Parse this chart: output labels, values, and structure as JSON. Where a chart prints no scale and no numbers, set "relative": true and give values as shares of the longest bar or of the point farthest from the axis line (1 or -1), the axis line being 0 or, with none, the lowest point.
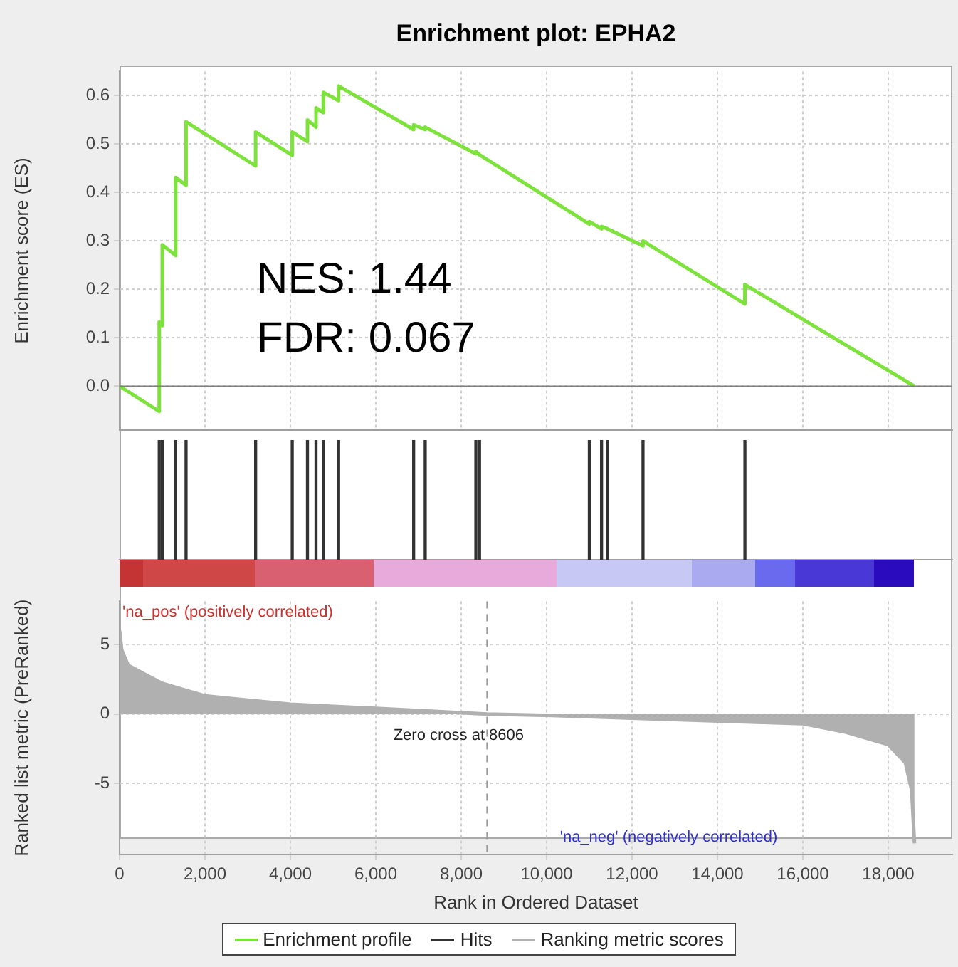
{
  "chart_data": [
    {
      "type": "line",
      "title": "Enrichment plot: EPHA2",
      "ylabel": "Enrichment score (ES)",
      "x": [
        0,
        929,
        929,
        1000,
        1000,
        1314,
        1314,
        1557,
        1557,
        3186,
        3186,
        4043,
        4043,
        4400,
        4400,
        4600,
        4600,
        4771,
        4771,
        5129,
        5129,
        6886,
        6886,
        7157,
        7157,
        8343,
        8343,
        8429,
        11000,
        11000,
        11286,
        11286,
        11429,
        12257,
        12257,
        14643,
        14643,
        18614
      ],
      "series": [
        {
          "name": "Enrichment profile",
          "color": "#7ee23c",
          "values": [
            0,
            -0.052,
            0.133,
            0.125,
            0.292,
            0.27,
            0.431,
            0.415,
            0.546,
            0.455,
            0.525,
            0.477,
            0.525,
            0.505,
            0.55,
            0.535,
            0.575,
            0.565,
            0.607,
            0.59,
            0.62,
            0.53,
            0.54,
            0.53,
            0.535,
            0.48,
            0.485,
            0.478,
            0.335,
            0.34,
            0.325,
            0.33,
            0.325,
            0.29,
            0.3,
            0.17,
            0.21,
            0
          ]
        }
      ],
      "xlim": [
        0,
        19500
      ],
      "xticks": [
        {
          "value": 2000,
          "label": null
        },
        {
          "value": 4000,
          "label": null
        },
        {
          "value": 6000,
          "label": null
        },
        {
          "value": 8000,
          "label": null
        },
        {
          "value": 10000,
          "label": null
        },
        {
          "value": 12000,
          "label": null
        },
        {
          "value": 14000,
          "label": null
        },
        {
          "value": 16000,
          "label": null
        },
        {
          "value": 18000,
          "label": null
        }
      ],
      "ylim": [
        -0.09,
        0.65
      ],
      "yticks": [
        {
          "value": 0,
          "label": "0.0"
        },
        {
          "value": 0.1,
          "label": "0.1"
        },
        {
          "value": 0.2,
          "label": "0.2"
        },
        {
          "value": 0.3,
          "label": "0.3"
        },
        {
          "value": 0.4,
          "label": "0.4"
        },
        {
          "value": 0.5,
          "label": "0.5"
        },
        {
          "value": 0.6,
          "label": "0.6"
        }
      ],
      "grid": true,
      "marker": "none",
      "tick_labels": "y",
      "ref_lines": [
        {
          "axis": "y",
          "value": 0,
          "color": "#808080"
        }
      ],
      "annotations": [
        "NES: 1.44",
        "FDR: 0.067"
      ]
    },
    {
      "type": "bar",
      "x": [
        929,
        1000,
        1314,
        1557,
        3186,
        4043,
        4400,
        4600,
        4771,
        5129,
        6886,
        7157,
        8343,
        8429,
        11000,
        11286,
        11429,
        12257,
        14643
      ],
      "series": [
        {
          "name": "Hits",
          "color": "#333333",
          "values": [
            1,
            1,
            1,
            1,
            1,
            1,
            1,
            1,
            1,
            1,
            1,
            1,
            1,
            1,
            1,
            1,
            1,
            1,
            1
          ]
        }
      ],
      "relative": true,
      "xlim": [
        0,
        19500
      ],
      "tick_labels": false
    },
    {
      "type": "area",
      "xlabel": "Rank in Ordered Dataset",
      "ylabel": "Ranked list metric (PreRanked)",
      "x": [
        0,
        50,
        200,
        500,
        1000,
        2000,
        3000,
        4000,
        6000,
        8606,
        10000,
        12000,
        14000,
        16000,
        17000,
        18000,
        18400,
        18550,
        18614
      ],
      "series": [
        {
          "name": "Ranking metric scores",
          "color": "#b0b0b0",
          "values": [
            6,
            4.6,
            3.5,
            3,
            2.2,
            1.3,
            1,
            0.7,
            0.4,
            0,
            -0.1,
            -0.3,
            -0.5,
            -0.7,
            -1.3,
            -2.2,
            -3.5,
            -5.5,
            -9.3
          ]
        }
      ],
      "xlim": [
        0,
        19500
      ],
      "xticks": [
        0,
        {
          "value": 2000,
          "label": "2,000"
        },
        {
          "value": 4000,
          "label": "4,000"
        },
        {
          "value": 6000,
          "label": "6,000"
        },
        {
          "value": 8000,
          "label": "8,000"
        },
        {
          "value": 10000,
          "label": "10,000"
        },
        {
          "value": 12000,
          "label": "12,000"
        },
        {
          "value": 14000,
          "label": "14,000"
        },
        {
          "value": 16000,
          "label": "16,000"
        },
        {
          "value": 18000,
          "label": "18,000"
        }
      ],
      "ylim": [
        -10.1,
        8.1
      ],
      "yticks": [
        5,
        0,
        -5
      ],
      "grid": true,
      "marker": "none",
      "legend": "bottom",
      "ref_lines": [
        {
          "axis": "x",
          "value": 8606,
          "label": "Zero cross at 8606",
          "line_style": "dashed",
          "color": "#999999"
        }
      ],
      "annotations": [
        "'na_pos' (positively correlated)",
        "'na_neg' (negatively correlated)"
      ]
    }
  ]
}
